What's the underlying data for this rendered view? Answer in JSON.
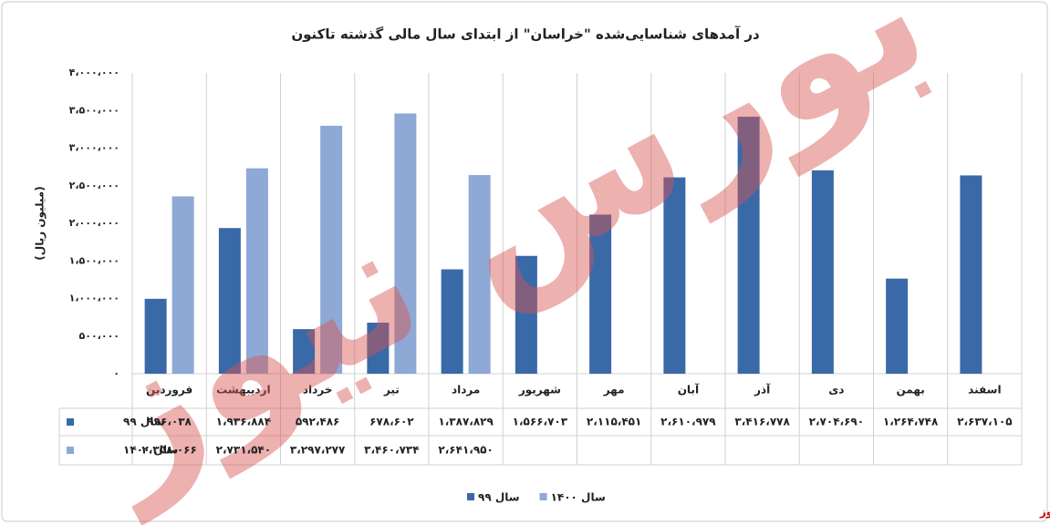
{
  "chart_data": {
    "type": "bar",
    "title": "در آمدهای شناسایی‌شده \"خراسان\" از ابتدای سال مالی گذشته تاکنون",
    "y_label": "(میلیون ریال)",
    "watermark": "بورس نیوز",
    "source": "بورس نیوز",
    "categories": [
      "فروردین",
      "اردیبهشت",
      "خرداد",
      "تیر",
      "مرداد",
      "شهریور",
      "مهر",
      "آبان",
      "آذر",
      "دی",
      "بهمن",
      "اسفند"
    ],
    "series": [
      {
        "name": "سال ۹۹",
        "color": "#3a69a8",
        "values": [
          996038,
          1936884,
          592486,
          678602,
          1387829,
          1566703,
          2115451,
          2610979,
          3416778,
          2704690,
          1264748,
          2637105
        ],
        "value_labels": [
          "۹۹۶،۰۳۸",
          "۱،۹۳۶،۸۸۴",
          "۵۹۲،۴۸۶",
          "۶۷۸،۶۰۲",
          "۱،۳۸۷،۸۲۹",
          "۱،۵۶۶،۷۰۳",
          "۲،۱۱۵،۴۵۱",
          "۲،۶۱۰،۹۷۹",
          "۳،۴۱۶،۷۷۸",
          "۲،۷۰۴،۶۹۰",
          "۱،۲۶۴،۷۴۸",
          "۲،۶۳۷،۱۰۵"
        ]
      },
      {
        "name": "سال ۱۴۰۰",
        "color": "#8ea9d6",
        "values": [
          2358066,
          2731540,
          3297277,
          3460734,
          2641950,
          null,
          null,
          null,
          null,
          null,
          null,
          null
        ],
        "value_labels": [
          "۲،۳۵۸،۰۶۶",
          "۲،۷۳۱،۵۴۰",
          "۳،۲۹۷،۲۷۷",
          "۳،۴۶۰،۷۳۴",
          "۲،۶۴۱،۹۵۰",
          null,
          null,
          null,
          null,
          null,
          null,
          null
        ]
      }
    ],
    "ylim": [
      0,
      4000000
    ],
    "yticks": [
      {
        "value": 0,
        "label": "۰"
      },
      {
        "value": 500000,
        "label": "۵۰۰،۰۰۰"
      },
      {
        "value": 1000000,
        "label": "۱،۰۰۰،۰۰۰"
      },
      {
        "value": 1500000,
        "label": "۱،۵۰۰،۰۰۰"
      },
      {
        "value": 2000000,
        "label": "۲،۰۰۰،۰۰۰"
      },
      {
        "value": 2500000,
        "label": "۲،۵۰۰،۰۰۰"
      },
      {
        "value": 3000000,
        "label": "۳،۰۰۰،۰۰۰"
      },
      {
        "value": 3500000,
        "label": "۳،۵۰۰،۰۰۰"
      },
      {
        "value": 4000000,
        "label": "۴،۰۰۰،۰۰۰"
      }
    ],
    "legend": "bottom"
  }
}
